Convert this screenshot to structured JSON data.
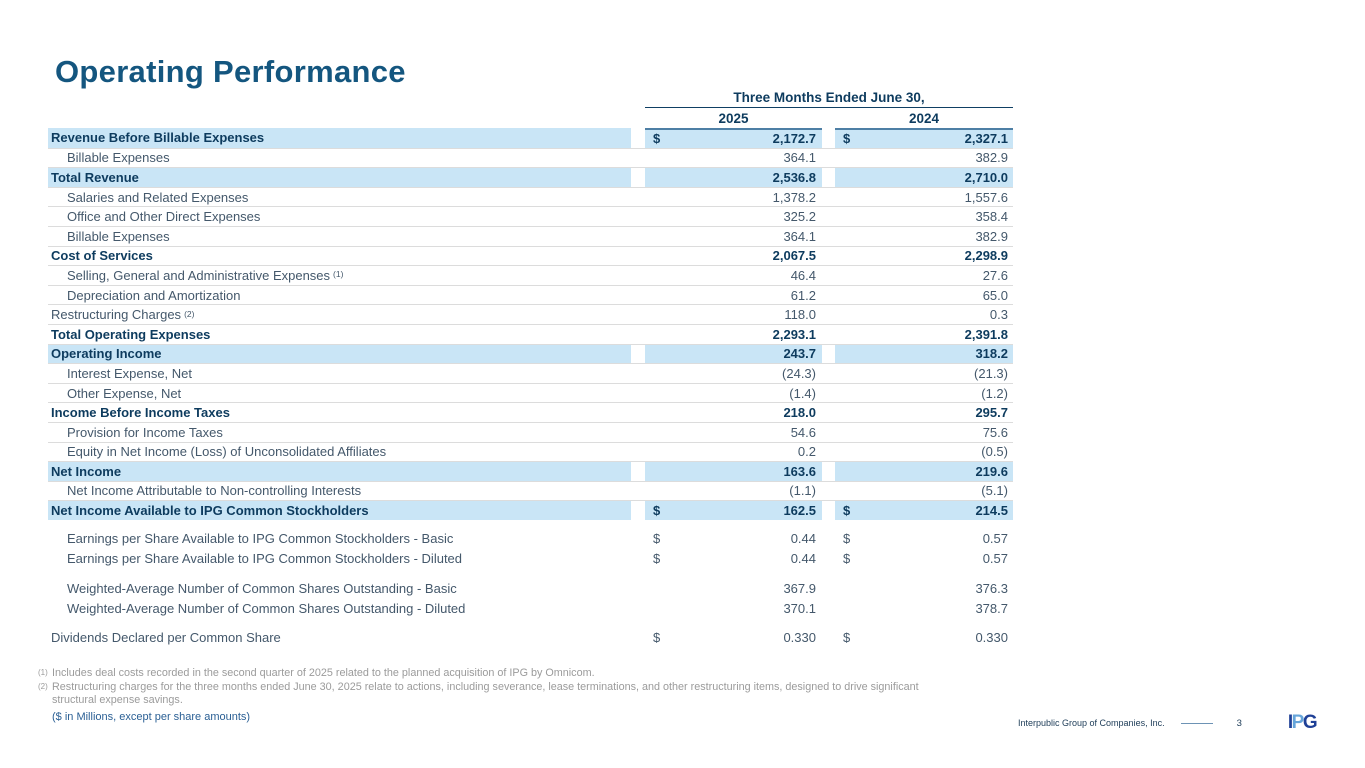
{
  "page_title": "Operating Performance",
  "table": {
    "period_header": "Three Months Ended June 30,",
    "years": [
      "2025",
      "2024"
    ],
    "dollar_symbol": "$",
    "rows": [
      {
        "label": "Revenue Before Billable Expenses",
        "v": [
          "2,172.7",
          "2,327.1"
        ],
        "d": true,
        "bold": true,
        "highlight": true
      },
      {
        "label": "Billable Expenses",
        "v": [
          "364.1",
          "382.9"
        ],
        "indent": true
      },
      {
        "label": "Total Revenue",
        "v": [
          "2,536.8",
          "2,710.0"
        ],
        "bold": true,
        "highlight": true
      },
      {
        "label": "Salaries and Related Expenses",
        "v": [
          "1,378.2",
          "1,557.6"
        ],
        "indent": true
      },
      {
        "label": "Office and Other Direct Expenses",
        "v": [
          "325.2",
          "358.4"
        ],
        "indent": true
      },
      {
        "label": "Billable Expenses",
        "v": [
          "364.1",
          "382.9"
        ],
        "indent": true
      },
      {
        "label": "Cost of Services",
        "v": [
          "2,067.5",
          "2,298.9"
        ],
        "bold": true
      },
      {
        "label": "Selling, General and Administrative Expenses",
        "sup": "(1)",
        "v": [
          "46.4",
          "27.6"
        ],
        "indent": true
      },
      {
        "label": "Depreciation and Amortization",
        "v": [
          "61.2",
          "65.0"
        ],
        "indent": true
      },
      {
        "label": "Restructuring Charges",
        "sup": "(2)",
        "v": [
          "118.0",
          "0.3"
        ]
      },
      {
        "label": "Total Operating Expenses",
        "v": [
          "2,293.1",
          "2,391.8"
        ],
        "bold": true
      },
      {
        "label": "Operating Income",
        "v": [
          "243.7",
          "318.2"
        ],
        "bold": true,
        "highlight": true
      },
      {
        "label": "Interest Expense, Net",
        "v": [
          "(24.3)",
          "(21.3)"
        ],
        "indent": true
      },
      {
        "label": "Other Expense, Net",
        "v": [
          "(1.4)",
          "(1.2)"
        ],
        "indent": true
      },
      {
        "label": "Income Before Income Taxes",
        "v": [
          "218.0",
          "295.7"
        ],
        "bold": true
      },
      {
        "label": "Provision for Income Taxes",
        "v": [
          "54.6",
          "75.6"
        ],
        "indent": true
      },
      {
        "label": "Equity in Net Income (Loss) of Unconsolidated Affiliates",
        "v": [
          "0.2",
          "(0.5)"
        ],
        "indent": true
      },
      {
        "label": "Net Income",
        "v": [
          "163.6",
          "219.6"
        ],
        "bold": true,
        "highlight": true
      },
      {
        "label": "Net Income Attributable to Non-controlling Interests",
        "v": [
          "(1.1)",
          "(5.1)"
        ],
        "indent": true
      },
      {
        "label": "Net Income Available to IPG Common Stockholders",
        "v": [
          "162.5",
          "214.5"
        ],
        "d": true,
        "bold": true,
        "highlight": true
      }
    ],
    "extra_sections": [
      {
        "gap": 9,
        "rows": [
          {
            "label": "Earnings per Share Available to IPG Common Stockholders - Basic",
            "v": [
              "0.44",
              "0.57"
            ],
            "d": true,
            "indent": true
          },
          {
            "label": "Earnings per Share Available to IPG Common Stockholders - Diluted",
            "v": [
              "0.44",
              "0.57"
            ],
            "d": true,
            "indent": true
          }
        ]
      },
      {
        "gap": 11,
        "rows": [
          {
            "label": "Weighted-Average Number of Common Shares Outstanding - Basic",
            "v": [
              "367.9",
              "376.3"
            ],
            "indent": true
          },
          {
            "label": "Weighted-Average Number of Common Shares Outstanding - Diluted",
            "v": [
              "370.1",
              "378.7"
            ],
            "indent": true
          }
        ]
      },
      {
        "gap": 9,
        "rows": [
          {
            "label": "Dividends Declared per Common Share",
            "v": [
              "0.330",
              "0.330"
            ],
            "d": true
          }
        ]
      }
    ]
  },
  "footnotes": [
    {
      "sup": "(1)",
      "text": "Includes deal costs recorded in the second quarter of 2025 related to the planned acquisition of IPG by Omnicom."
    },
    {
      "sup": "(2)",
      "text": "Restructuring charges for the three months ended June 30, 2025 relate to actions, including severance, lease terminations, and other restructuring items, designed to drive significant structural expense savings."
    }
  ],
  "units_note": "($ in Millions, except per share amounts)",
  "footer": {
    "company": "Interpublic Group of Companies, Inc.",
    "page_number": "3",
    "logo": {
      "i": "I",
      "p": "P",
      "g": "G"
    }
  },
  "colors": {
    "title_blue": "#14567f",
    "bold_navy": "#0d3b5e",
    "regular_text": "#44586b",
    "highlight_blue": "#c9e5f6",
    "steel_line": "#4e7fa5",
    "separator_gray": "#dcdcdc",
    "footnote_gray": "#9b9b9b",
    "units_blue": "#2a5f94",
    "logo_dark_blue": "#1f4096",
    "logo_light_blue": "#66a5da"
  }
}
